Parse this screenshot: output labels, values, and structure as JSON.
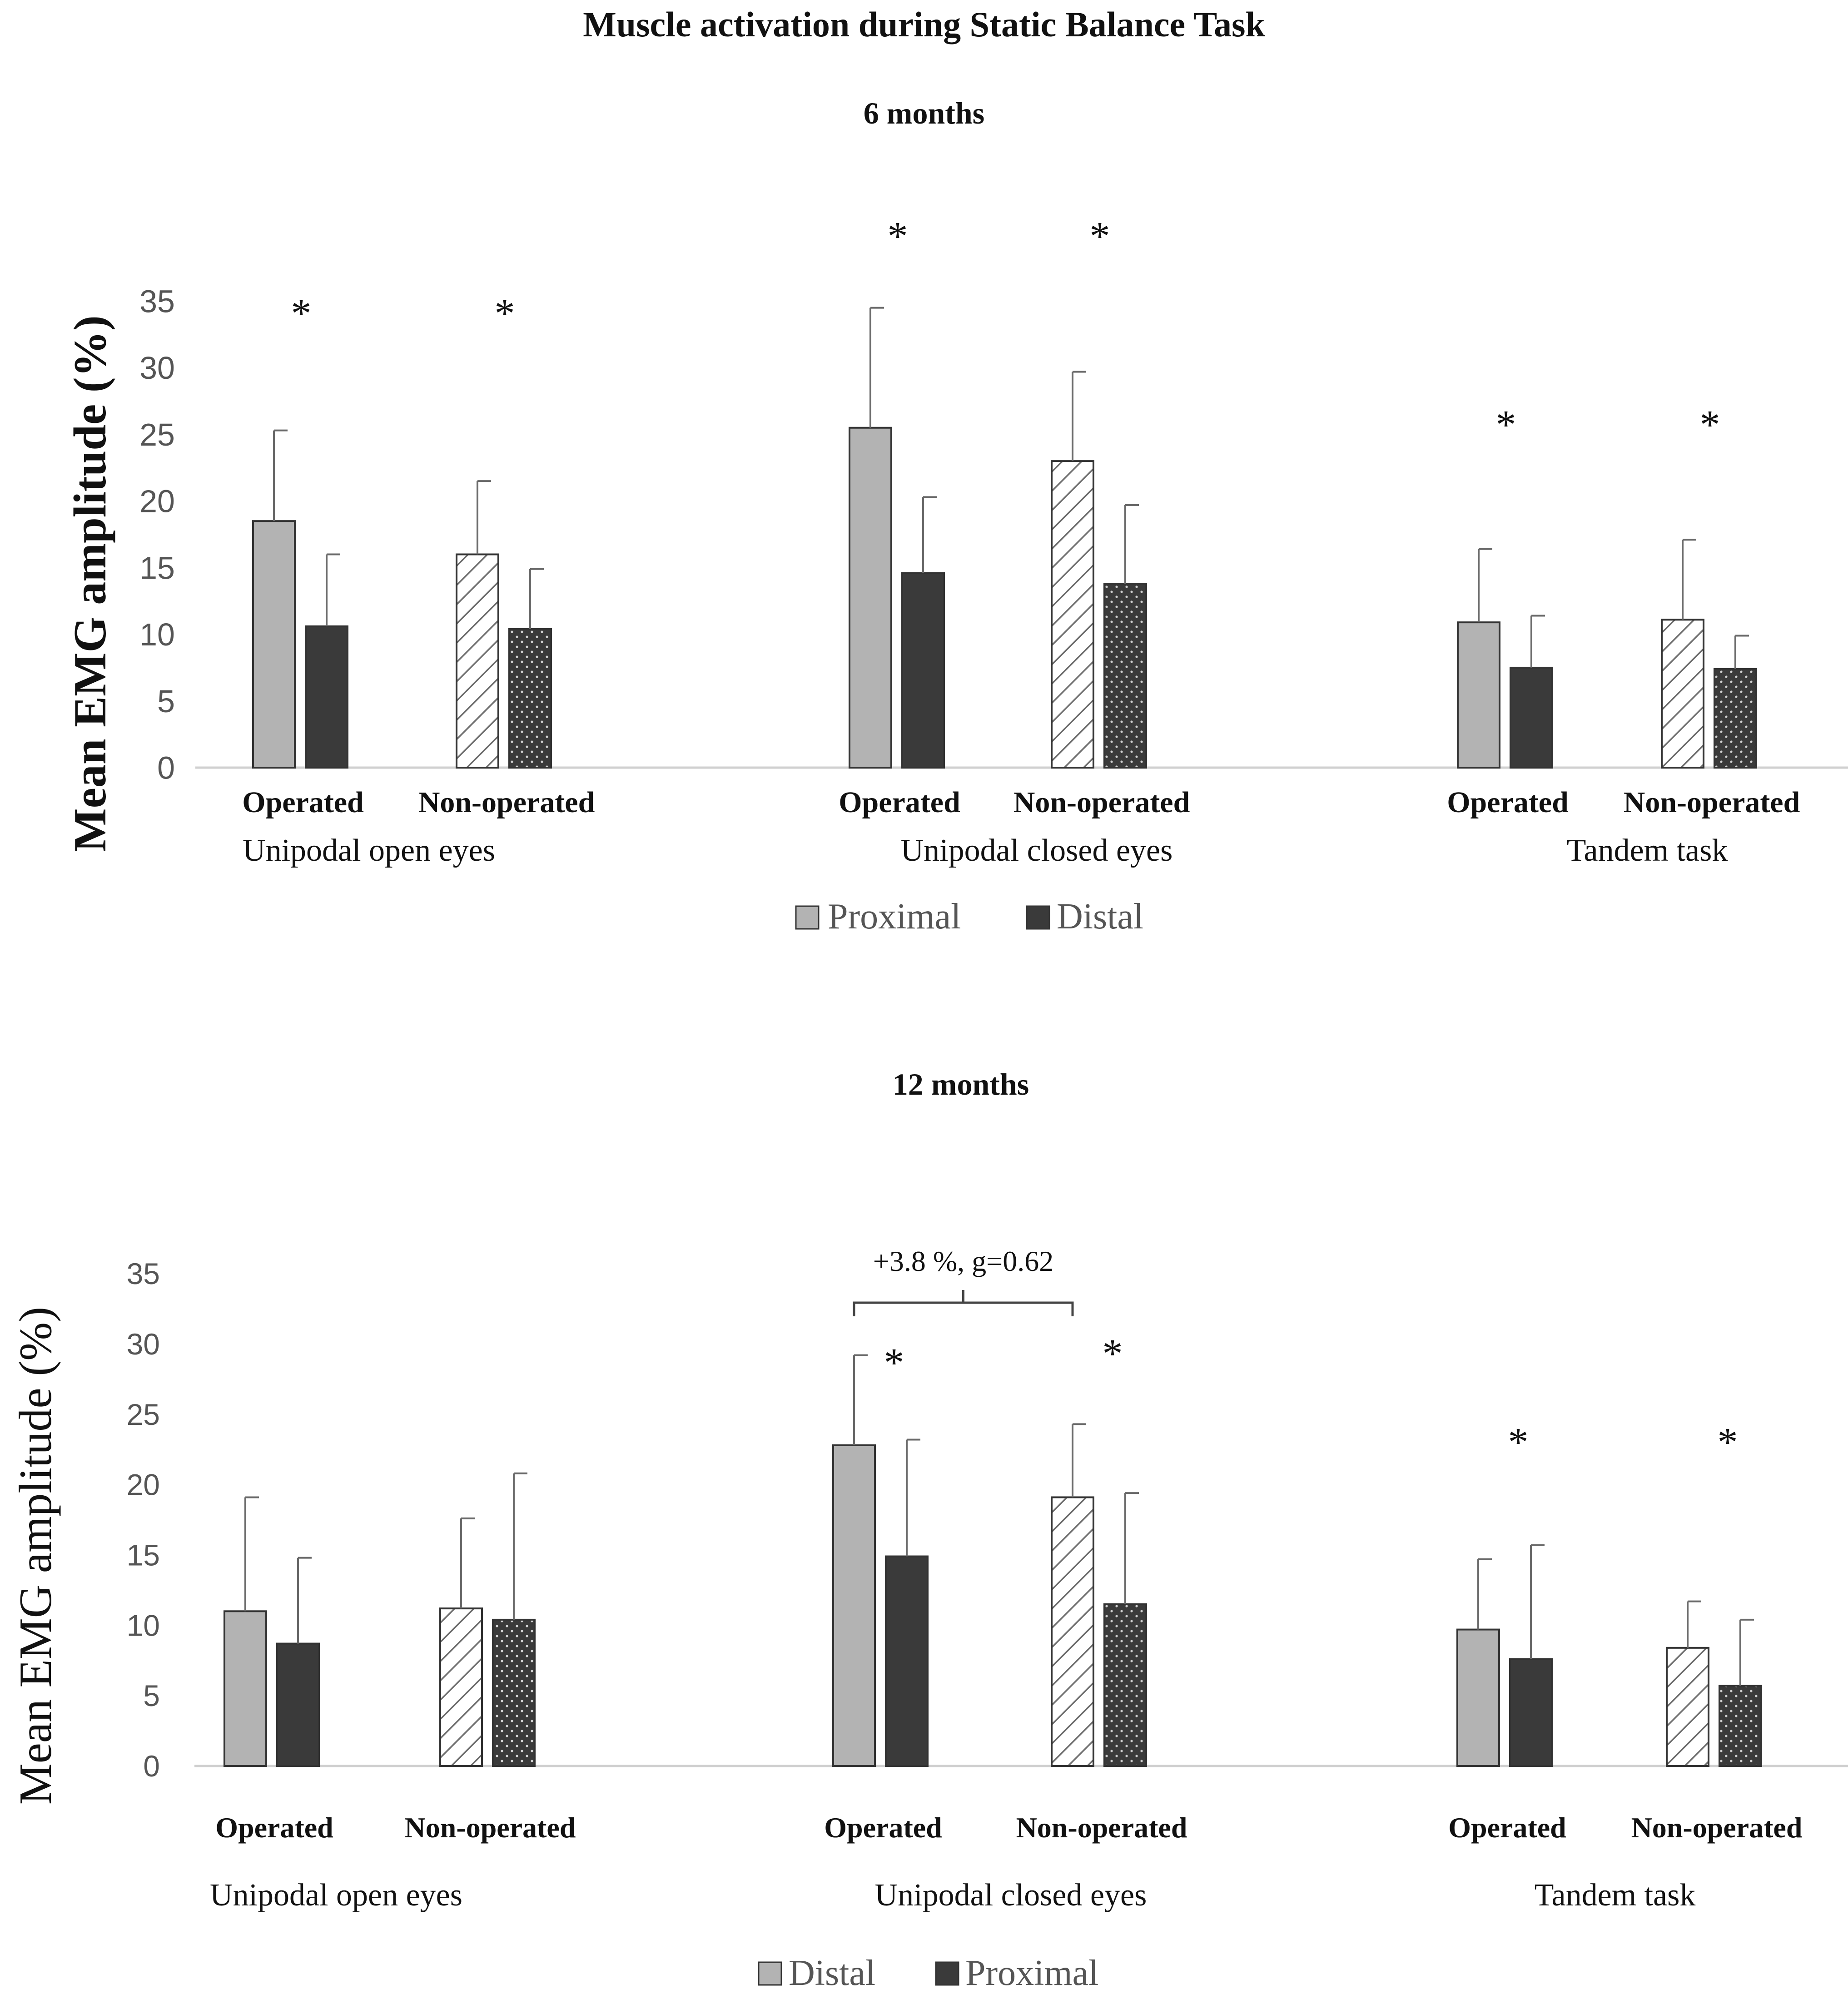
{
  "figure": {
    "title": "Muscle activation during Static Balance Task"
  },
  "colors": {
    "light_bar": "#b3b3b3",
    "dark_bar": "#3a3a3a",
    "hatch_bg": "#ffffff",
    "hatch_line": "#6e6e6e",
    "dot_bg": "#3a3a3a",
    "dot": "#cfcfcf",
    "axis": "#d0d0d0",
    "error_bar": "#6a6a6a",
    "text": "#111111",
    "tick_text": "#555555"
  },
  "chart_data": [
    {
      "type": "bar",
      "title": "6 months",
      "ylabel": "Mean EMG amplitude (%)",
      "xlabel": "",
      "ylim": [
        0,
        35
      ],
      "yticks": [
        0,
        5,
        10,
        15,
        20,
        25,
        30,
        35
      ],
      "grid": false,
      "legend_position": "bottom-center",
      "groups": [
        "Unipodal open eyes",
        "Unipodal closed eyes",
        "Tandem task"
      ],
      "subcategories": [
        "Operated",
        "Non-operated"
      ],
      "series": [
        {
          "name": "Proximal",
          "values": [
            18.5,
            16.0,
            25.5,
            23.0,
            10.9,
            11.1
          ],
          "errors": [
            6.8,
            5.5,
            9.0,
            6.7,
            5.5,
            6.0
          ]
        },
        {
          "name": "Distal",
          "values": [
            10.6,
            10.4,
            14.6,
            13.8,
            7.5,
            7.4
          ],
          "errors": [
            5.4,
            4.5,
            5.7,
            5.9,
            3.9,
            2.5
          ]
        }
      ],
      "annotations": [
        {
          "text": "*",
          "subcategory": "Operated",
          "group": "Unipodal open eyes"
        },
        {
          "text": "*",
          "subcategory": "Non-operated",
          "group": "Unipodal open eyes"
        },
        {
          "text": "*",
          "subcategory": "Operated",
          "group": "Unipodal closed eyes"
        },
        {
          "text": "*",
          "subcategory": "Non-operated",
          "group": "Unipodal closed eyes"
        },
        {
          "text": "*",
          "subcategory": "Operated",
          "group": "Tandem task"
        },
        {
          "text": "*",
          "subcategory": "Non-operated",
          "group": "Tandem task"
        }
      ]
    },
    {
      "type": "bar",
      "title": "12 months",
      "ylabel": "Mean EMG amplitude (%)",
      "xlabel": "",
      "ylim": [
        0,
        35
      ],
      "yticks": [
        0,
        5,
        10,
        15,
        20,
        25,
        30,
        35
      ],
      "grid": false,
      "legend_position": "bottom-center",
      "groups": [
        "Unipodal open eyes",
        "Unipodal closed eyes",
        "Tandem task"
      ],
      "subcategories": [
        "Operated",
        "Non-operated"
      ],
      "series": [
        {
          "name": "Distal",
          "values": [
            11.0,
            11.2,
            22.8,
            19.1,
            9.7,
            8.4
          ],
          "errors": [
            8.1,
            6.4,
            6.4,
            5.2,
            5.0,
            3.3
          ]
        },
        {
          "name": "Proximal",
          "values": [
            8.7,
            10.4,
            14.9,
            11.5,
            7.6,
            5.7
          ],
          "errors": [
            6.1,
            10.4,
            8.3,
            7.9,
            8.1,
            4.7
          ]
        }
      ],
      "annotations": [
        {
          "text": "*",
          "subcategory": "Operated",
          "group": "Unipodal closed eyes"
        },
        {
          "text": "*",
          "subcategory": "Non-operated",
          "group": "Unipodal closed eyes"
        },
        {
          "text": "*",
          "subcategory": "Operated",
          "group": "Tandem task"
        },
        {
          "text": "*",
          "subcategory": "Non-operated",
          "group": "Tandem task"
        },
        {
          "text": "+3.8 %, g=0.62",
          "bracket": [
            "Operated",
            "Non-operated"
          ],
          "group": "Unipodal closed eyes",
          "series": "Distal"
        }
      ]
    }
  ]
}
